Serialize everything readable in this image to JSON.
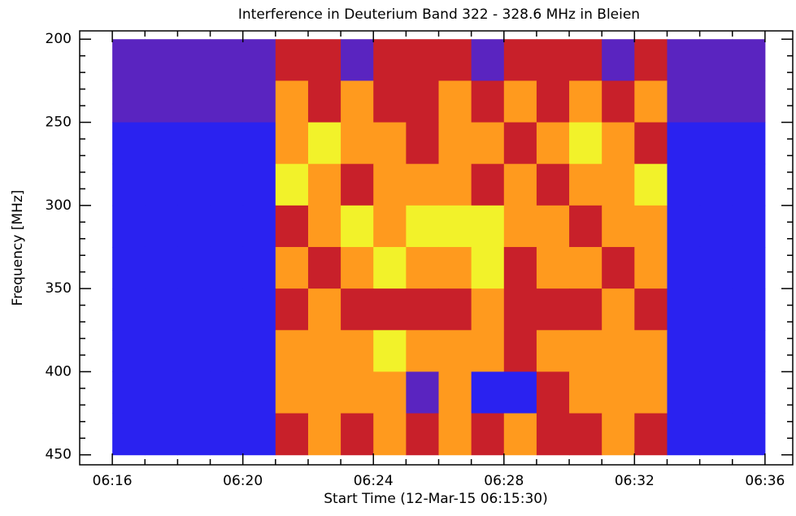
{
  "chart_data": {
    "type": "heatmap",
    "title": "Interference in Deuterium Band 322 - 328.6 MHz in Bleien",
    "x_label": "Start Time (12-Mar-15 06:15:30)",
    "y_label": "Frequency [MHz]",
    "xlim": [
      15,
      36.85
    ],
    "xticks": [
      {
        "value": 16,
        "label": "06:16"
      },
      {
        "value": 20,
        "label": "06:20"
      },
      {
        "value": 24,
        "label": "06:24"
      },
      {
        "value": 28,
        "label": "06:28"
      },
      {
        "value": 32,
        "label": "06:32"
      },
      {
        "value": 36,
        "label": "06:36"
      }
    ],
    "ylim": [
      456,
      195
    ],
    "yticks": [
      200,
      250,
      300,
      350,
      400,
      450
    ],
    "xbins": [
      16,
      17,
      18,
      19,
      20,
      21,
      22,
      23,
      24,
      25,
      26,
      27,
      28,
      29,
      30,
      31,
      32,
      33,
      34,
      35,
      36
    ],
    "ybins": [
      200,
      225,
      250,
      275,
      300,
      325,
      350,
      375,
      400,
      425,
      450
    ],
    "colors": [
      "#2a22f0",
      "#5a24c0",
      "#c8202a",
      "#ff9a1e",
      "#f2f22a"
    ],
    "z": [
      [
        1,
        1,
        1,
        1,
        1,
        2,
        2,
        1,
        2,
        2,
        2,
        1,
        2,
        2,
        2,
        1,
        2,
        1,
        1,
        1
      ],
      [
        1,
        1,
        1,
        1,
        1,
        3,
        2,
        3,
        2,
        2,
        3,
        2,
        3,
        2,
        3,
        2,
        3,
        1,
        1,
        1
      ],
      [
        0,
        0,
        0,
        0,
        0,
        3,
        4,
        3,
        3,
        2,
        3,
        3,
        2,
        3,
        4,
        3,
        2,
        0,
        0,
        0
      ],
      [
        0,
        0,
        0,
        0,
        0,
        4,
        3,
        2,
        3,
        3,
        3,
        2,
        3,
        2,
        3,
        3,
        4,
        0,
        0,
        0
      ],
      [
        0,
        0,
        0,
        0,
        0,
        2,
        3,
        4,
        3,
        4,
        4,
        4,
        3,
        3,
        2,
        3,
        3,
        0,
        0,
        0
      ],
      [
        0,
        0,
        0,
        0,
        0,
        3,
        2,
        3,
        4,
        3,
        3,
        4,
        2,
        3,
        3,
        2,
        3,
        0,
        0,
        0
      ],
      [
        0,
        0,
        0,
        0,
        0,
        2,
        3,
        2,
        2,
        2,
        2,
        3,
        2,
        2,
        2,
        3,
        2,
        0,
        0,
        0
      ],
      [
        0,
        0,
        0,
        0,
        0,
        3,
        3,
        3,
        4,
        3,
        3,
        3,
        2,
        3,
        3,
        3,
        3,
        0,
        0,
        0
      ],
      [
        0,
        0,
        0,
        0,
        0,
        3,
        3,
        3,
        3,
        1,
        3,
        0,
        0,
        2,
        3,
        3,
        3,
        0,
        0,
        0
      ],
      [
        0,
        0,
        0,
        0,
        0,
        2,
        3,
        2,
        3,
        2,
        3,
        2,
        3,
        2,
        2,
        3,
        2,
        0,
        0,
        0
      ]
    ]
  }
}
